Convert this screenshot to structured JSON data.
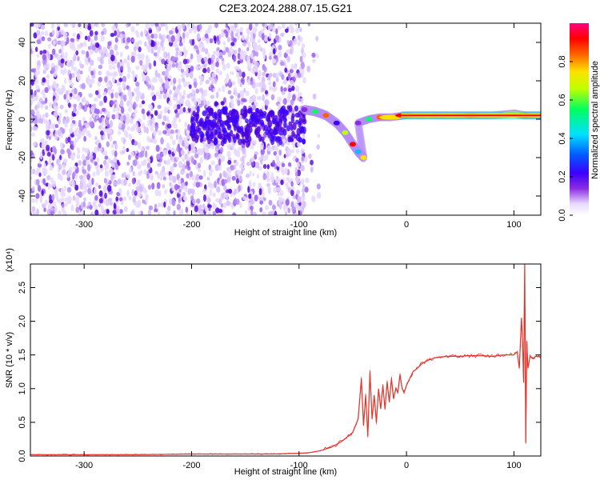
{
  "chart_data": [
    {
      "type": "heatmap",
      "title": "C2E3.2024.288.07.15.G21",
      "xlabel": "Height of straight line (km)",
      "ylabel": "Frequency (Hz)",
      "xlim": [
        -350,
        125
      ],
      "ylim": [
        -50,
        50
      ],
      "xticks": [
        "-300",
        "-200",
        "-100",
        "0",
        "100"
      ],
      "yticks": [
        "-40",
        "-20",
        "0",
        "20",
        "40"
      ],
      "grid": false,
      "colorbar": {
        "label": "Normalized spectral amplitude",
        "range": [
          0,
          1
        ],
        "ticks": [
          "0.0",
          "0.2",
          "0.4",
          "0.6",
          "0.8"
        ],
        "colormap": [
          "#ffffff",
          "#e8d8ff",
          "#8a2be2",
          "#3a00ff",
          "#0060ff",
          "#00e0ff",
          "#00ff60",
          "#c0ff00",
          "#ffe000",
          "#ff6000",
          "#ff0000",
          "#ff0080"
        ]
      },
      "ridge": [
        {
          "x": -95,
          "y": 5
        },
        {
          "x": -85,
          "y": 4
        },
        {
          "x": -75,
          "y": 2
        },
        {
          "x": -65,
          "y": -2
        },
        {
          "x": -57,
          "y": -7
        },
        {
          "x": -50,
          "y": -13
        },
        {
          "x": -45,
          "y": -17
        },
        {
          "x": -40,
          "y": -20
        },
        {
          "x": -45,
          "y": -2
        },
        {
          "x": -35,
          "y": 0
        },
        {
          "x": -25,
          "y": 1
        },
        {
          "x": -15,
          "y": 1
        },
        {
          "x": 0,
          "y": 2
        },
        {
          "x": 20,
          "y": 2
        },
        {
          "x": 40,
          "y": 2
        },
        {
          "x": 60,
          "y": 2
        },
        {
          "x": 80,
          "y": 2
        },
        {
          "x": 100,
          "y": 3
        },
        {
          "x": 110,
          "y": 2
        },
        {
          "x": 125,
          "y": 2
        }
      ]
    },
    {
      "type": "line",
      "xlabel": "Height of straight line (km)",
      "ylabel": "SNR (10 * v/v)",
      "y_exponent_label": "(x10⁴)",
      "xlim": [
        -350,
        125
      ],
      "ylim": [
        0,
        2.85
      ],
      "xticks": [
        "-300",
        "-200",
        "-100",
        "0",
        "100"
      ],
      "yticks": [
        "0.0",
        "0.5",
        "1.0",
        "1.5",
        "2.0",
        "2.5"
      ],
      "grid": false,
      "series_color": "#e8332a",
      "x": [
        -350,
        -300,
        -250,
        -200,
        -150,
        -125,
        -100,
        -90,
        -80,
        -70,
        -60,
        -50,
        -45,
        -42,
        -40,
        -38,
        -36,
        -34,
        -32,
        -30,
        -28,
        -26,
        -24,
        -22,
        -20,
        -18,
        -16,
        -14,
        -12,
        -10,
        -8,
        -6,
        -4,
        -2,
        0,
        3,
        6,
        10,
        15,
        20,
        25,
        30,
        40,
        50,
        60,
        70,
        80,
        90,
        100,
        103,
        105,
        107,
        108,
        109,
        110,
        111,
        112,
        113,
        115,
        118,
        120,
        125
      ],
      "values": [
        0.02,
        0.02,
        0.02,
        0.03,
        0.03,
        0.03,
        0.04,
        0.05,
        0.08,
        0.13,
        0.22,
        0.35,
        0.55,
        1.15,
        0.45,
        0.9,
        0.3,
        1.25,
        0.55,
        0.9,
        0.5,
        1.0,
        0.7,
        1.05,
        0.7,
        1.1,
        0.8,
        1.15,
        0.85,
        1.0,
        0.95,
        1.2,
        1.0,
        0.95,
        1.05,
        1.15,
        1.25,
        1.3,
        1.38,
        1.42,
        1.45,
        1.47,
        1.48,
        1.48,
        1.49,
        1.49,
        1.48,
        1.5,
        1.5,
        1.55,
        1.3,
        2.05,
        1.7,
        1.1,
        2.85,
        0.2,
        1.7,
        1.3,
        1.48,
        1.45,
        1.48,
        1.47
      ]
    }
  ]
}
